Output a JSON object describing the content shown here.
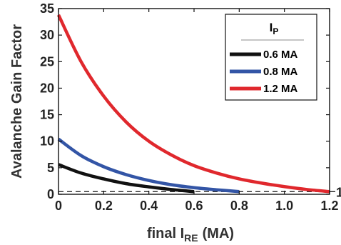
{
  "chart_data": {
    "type": "line",
    "xlabel": "final I",
    "xlabel_sub": "RE",
    "xlabel_unit": "(MA)",
    "ylabel": "Avalanche Gain Factor",
    "xlim": [
      0,
      1.2
    ],
    "ylim": [
      0,
      35
    ],
    "x_ticks": [
      "0",
      "0.2",
      "0.4",
      "0.6",
      "0.8",
      "1.0",
      "1.2"
    ],
    "y_ticks": [
      "0",
      "5",
      "10",
      "15",
      "20",
      "25",
      "30",
      "35"
    ],
    "legend": {
      "title": "I",
      "title_sub": "P",
      "position": "top-right"
    },
    "reference_line": {
      "y": 0.5,
      "label": "1",
      "style": "dashed"
    },
    "series": [
      {
        "name": "0.6 MA",
        "color": "#111111",
        "x": [
          0.0,
          0.1,
          0.2,
          0.3,
          0.4,
          0.5,
          0.6
        ],
        "y": [
          5.6,
          4.0,
          2.9,
          2.0,
          1.4,
          0.9,
          0.5
        ]
      },
      {
        "name": "0.8 MA",
        "color": "#3355a6",
        "x": [
          0.0,
          0.1,
          0.2,
          0.3,
          0.4,
          0.5,
          0.6,
          0.7,
          0.8
        ],
        "y": [
          10.4,
          7.3,
          5.2,
          3.7,
          2.6,
          1.8,
          1.25,
          0.85,
          0.5
        ]
      },
      {
        "name": "1.2 MA",
        "color": "#e0282d",
        "x": [
          0.0,
          0.1,
          0.2,
          0.3,
          0.4,
          0.5,
          0.6,
          0.7,
          0.8,
          0.9,
          1.0,
          1.1,
          1.2
        ],
        "y": [
          33.8,
          25.0,
          18.5,
          13.6,
          10.0,
          7.4,
          5.4,
          4.0,
          2.9,
          2.1,
          1.45,
          0.9,
          0.5
        ]
      }
    ]
  }
}
